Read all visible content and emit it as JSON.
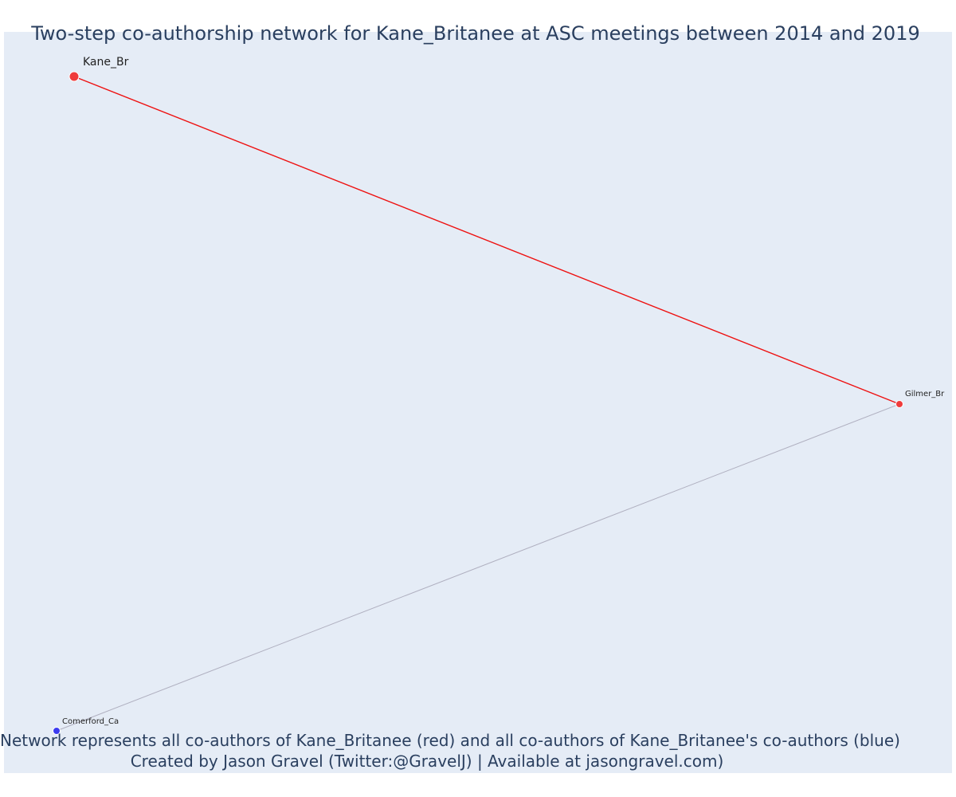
{
  "title": "Two-step co-authorship network for Kane_Britanee at ASC meetings between 2014 and 2019",
  "footer": {
    "line1": "Network represents all co-authors of Kane_Britanee (red) and all co-authors of Kane_Britanee's co-authors (blue)",
    "line2": "Created by Jason Gravel (Twitter:@GravelJ) | Available at jasongravel.com)"
  },
  "colors": {
    "plot_background": "#e5ecf6",
    "ego_edge": "#ee1111",
    "second_step_edge": "#b0b0c0",
    "red_node": "#ef3b3b",
    "blue_node": "#3b3bef",
    "text": "#2a3f5f"
  },
  "network": {
    "nodes": [
      {
        "id": "kane",
        "label": "Kane_Br",
        "group": "ego",
        "color": "red_node"
      },
      {
        "id": "gilmer",
        "label": "Gilmer_Br",
        "group": "co-author",
        "color": "red_node"
      },
      {
        "id": "comerford",
        "label": "Comerford_Ca",
        "group": "co-author-of-co-author",
        "color": "blue_node"
      }
    ],
    "edges": [
      {
        "source": "kane",
        "target": "gilmer",
        "color": "ego_edge"
      },
      {
        "source": "gilmer",
        "target": "comerford",
        "color": "second_step_edge"
      }
    ]
  }
}
